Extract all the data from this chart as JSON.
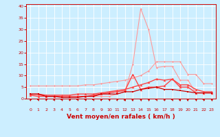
{
  "title": "",
  "xlabel": "Vent moyen/en rafales ( km/h )",
  "xlabel_fontsize": 6.5,
  "background_color": "#cceeff",
  "grid_color": "#ffffff",
  "x_ticks": [
    0,
    1,
    2,
    3,
    4,
    5,
    6,
    7,
    8,
    9,
    10,
    11,
    12,
    13,
    14,
    15,
    16,
    17,
    18,
    19,
    20,
    21,
    22,
    23
  ],
  "ylim": [
    0,
    41
  ],
  "xlim": [
    -0.5,
    23.5
  ],
  "yticks": [
    0,
    5,
    10,
    15,
    20,
    25,
    30,
    35,
    40
  ],
  "series": [
    {
      "name": "line_pink_flat",
      "color": "#ff9999",
      "x": [
        0,
        1,
        2,
        3,
        4,
        5,
        6,
        7,
        8,
        9,
        10,
        11,
        12,
        13,
        14,
        15,
        16,
        17,
        18,
        19,
        20,
        21,
        22,
        23
      ],
      "y": [
        5.5,
        5.5,
        5.5,
        5.5,
        5.5,
        5.5,
        5.5,
        6,
        6,
        6.5,
        7,
        7.5,
        8,
        9,
        10,
        12,
        16,
        16,
        16,
        16,
        10.5,
        10.5,
        6.5,
        6.5
      ],
      "marker": "D",
      "markersize": 1.5,
      "linewidth": 0.8
    },
    {
      "name": "line_pink_peak",
      "color": "#ff9999",
      "x": [
        0,
        1,
        2,
        3,
        4,
        5,
        6,
        7,
        8,
        9,
        10,
        11,
        12,
        13,
        14,
        15,
        16,
        17,
        18,
        19,
        20,
        21,
        22,
        23
      ],
      "y": [
        1.5,
        1.5,
        1,
        1,
        1,
        1,
        1,
        1,
        1,
        1,
        1,
        2,
        3,
        15,
        39,
        30,
        13.5,
        14,
        14,
        8,
        8,
        2.5,
        2.5,
        2.5
      ],
      "marker": "D",
      "markersize": 1.5,
      "linewidth": 0.8
    },
    {
      "name": "line_red_upper",
      "color": "#ff4444",
      "x": [
        0,
        1,
        2,
        3,
        4,
        5,
        6,
        7,
        8,
        9,
        10,
        11,
        12,
        13,
        14,
        15,
        16,
        17,
        18,
        19,
        20,
        21,
        22,
        23
      ],
      "y": [
        2,
        2,
        1.5,
        1.5,
        1.5,
        1.5,
        2,
        2,
        2,
        2.5,
        3,
        3.5,
        4,
        5,
        6,
        7,
        8.5,
        8,
        8.5,
        6,
        6,
        4,
        3,
        3
      ],
      "marker": "^",
      "markersize": 2.5,
      "linewidth": 1.0
    },
    {
      "name": "line_red_lower",
      "color": "#ff4444",
      "x": [
        0,
        1,
        2,
        3,
        4,
        5,
        6,
        7,
        8,
        9,
        10,
        11,
        12,
        13,
        14,
        15,
        16,
        17,
        18,
        19,
        20,
        21,
        22,
        23
      ],
      "y": [
        1.5,
        1,
        1,
        1,
        1,
        1,
        1,
        1,
        1.5,
        2,
        2.5,
        3,
        3.5,
        10.5,
        4,
        5,
        5,
        5.5,
        8.5,
        5,
        5,
        2.5,
        2.5,
        2.5
      ],
      "marker": "^",
      "markersize": 2.5,
      "linewidth": 1.0
    },
    {
      "name": "line_darkred",
      "color": "#cc0000",
      "x": [
        0,
        1,
        2,
        3,
        4,
        5,
        6,
        7,
        8,
        9,
        10,
        11,
        12,
        13,
        14,
        15,
        16,
        17,
        18,
        19,
        20,
        21,
        22,
        23
      ],
      "y": [
        2,
        2,
        1,
        1,
        0.5,
        0.5,
        0.5,
        1,
        1,
        2,
        2,
        2,
        3,
        3,
        4,
        4.5,
        5,
        4,
        4,
        3.5,
        3,
        2.5,
        2.5,
        2.5
      ],
      "marker": "s",
      "markersize": 1.5,
      "linewidth": 0.9
    }
  ],
  "wind_arrows": {
    "x": [
      0,
      1,
      2,
      3,
      4,
      5,
      6,
      7,
      8,
      9,
      10,
      11,
      12,
      13,
      14,
      15,
      16,
      17,
      18,
      19,
      20,
      21,
      22,
      23
    ],
    "angles_deg": [
      225,
      270,
      225,
      240,
      270,
      240,
      270,
      270,
      270,
      90,
      315,
      225,
      45,
      45,
      315,
      315,
      270,
      240,
      270,
      45,
      45,
      315,
      270,
      315
    ]
  }
}
